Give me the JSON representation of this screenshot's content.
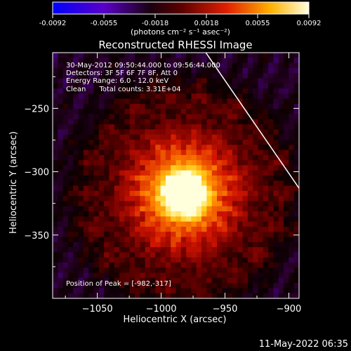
{
  "colorbar": {
    "ticks": [
      "-0.0092",
      "-0.0055",
      "-0.0018",
      "0.0018",
      "0.0055",
      "0.0092"
    ],
    "unit_label": "(photons cm⁻² s⁻¹ asec⁻²)",
    "range": [
      -0.0092,
      0.0092
    ]
  },
  "chart_data": {
    "type": "heatmap",
    "title": "Reconstructed RHESSI Image",
    "xlabel": "Heliocentric X (arcsec)",
    "ylabel": "Heliocentric Y (arcsec)",
    "xlim": [
      -1085,
      -892
    ],
    "ylim": [
      -400,
      -206
    ],
    "x_ticks": [
      -1050,
      -1000,
      -950,
      -900
    ],
    "y_ticks": [
      -250,
      -300,
      -350
    ],
    "x_tick_labels": [
      "−1050",
      "−1000",
      "−950",
      "−900"
    ],
    "y_tick_labels": [
      "−250",
      "−300",
      "−350"
    ],
    "peak": [
      -982,
      -317
    ],
    "annotations": [
      "30-May-2012 09:50:44.000 to 09:56:44.000",
      "Detectors: 3F 5F 6F 7F 8F, Att 0",
      "Energy Range: 6.0 - 12.0 keV",
      "Clean      Total counts: 3.31E+04"
    ],
    "peak_label": "Position of Peak = [-982,-317]",
    "limb_line": [
      [
        -965,
        -206
      ],
      [
        -892,
        -313
      ]
    ]
  },
  "footer": {
    "timestamp": "11-May-2022 06:35"
  }
}
